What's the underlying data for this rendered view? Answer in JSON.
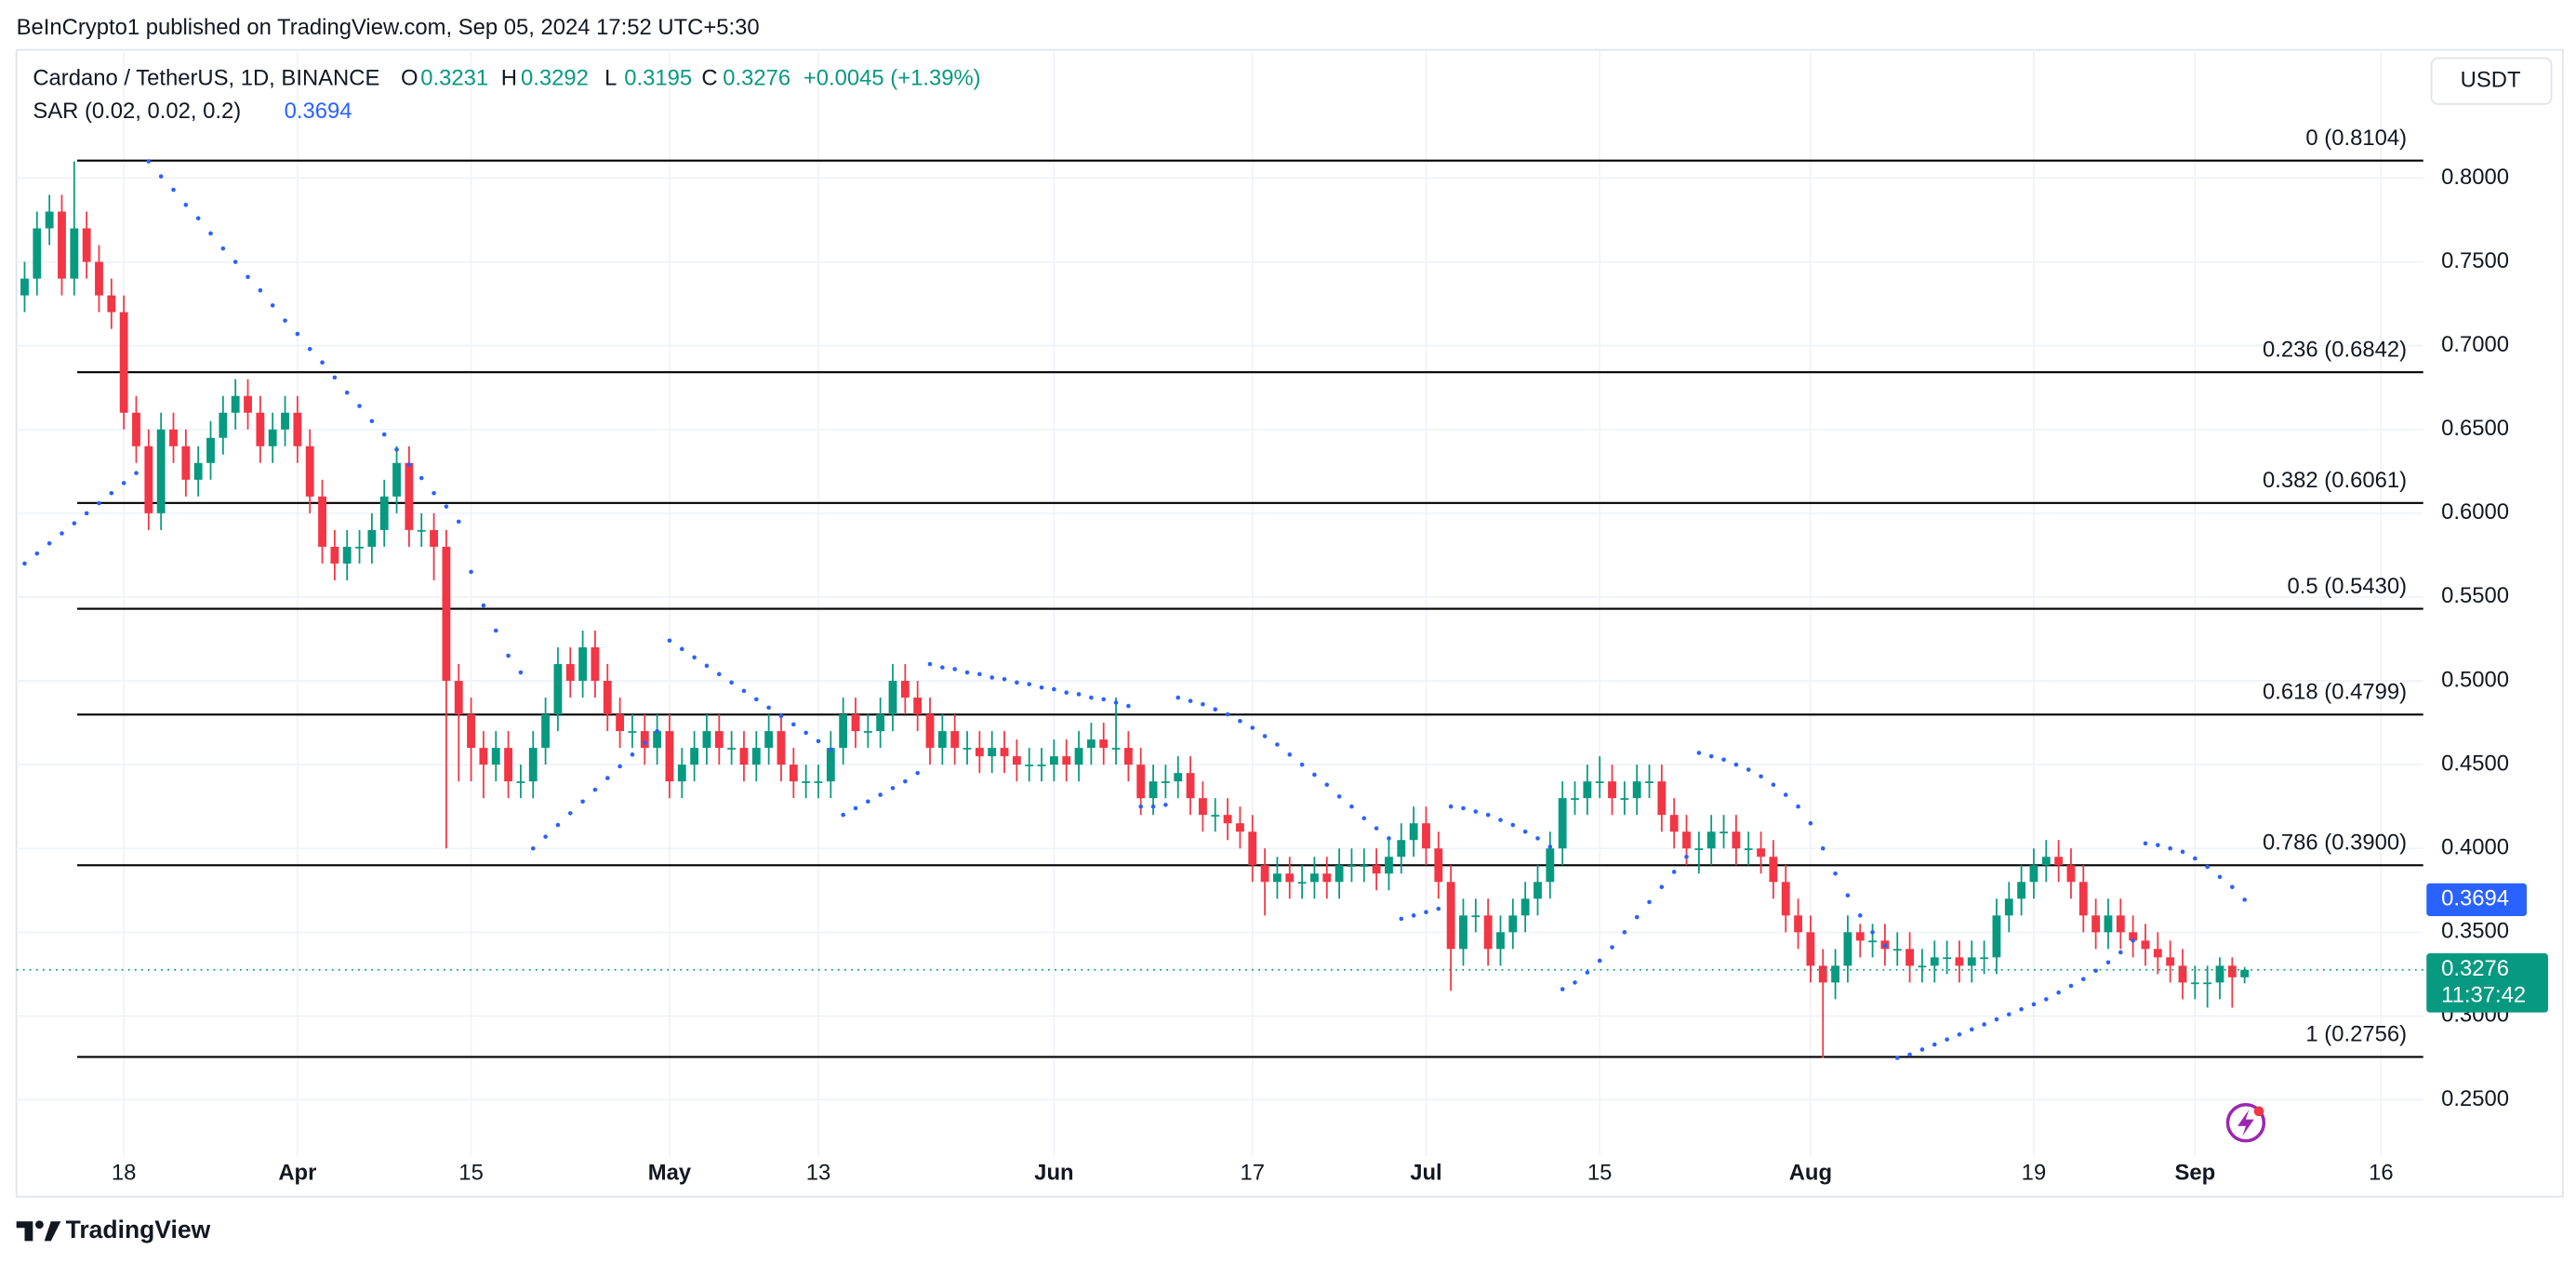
{
  "header": {
    "published": "BeInCrypto1 published on TradingView.com, Sep 05, 2024 17:52 UTC+5:30"
  },
  "footer": {
    "brand": "TradingView"
  },
  "chart_data": {
    "type": "candlestick",
    "symbol": "Cardano / TetherUS, 1D, BINANCE",
    "ohlc_labels": [
      "O",
      "H",
      "L",
      "C"
    ],
    "change": "+0.0045 (+1.39%)",
    "up_color": "#089981",
    "down_color": "#f23645",
    "currency": "USDT",
    "countdown": "11:37:42",
    "grid": true,
    "ohlc": [
      [
        0.73,
        0.75,
        0.72,
        0.74
      ],
      [
        0.74,
        0.78,
        0.73,
        0.77
      ],
      [
        0.77,
        0.79,
        0.76,
        0.78
      ],
      [
        0.78,
        0.79,
        0.73,
        0.74
      ],
      [
        0.74,
        0.81,
        0.73,
        0.77
      ],
      [
        0.77,
        0.78,
        0.74,
        0.75
      ],
      [
        0.75,
        0.76,
        0.72,
        0.73
      ],
      [
        0.73,
        0.74,
        0.71,
        0.72
      ],
      [
        0.72,
        0.73,
        0.65,
        0.66
      ],
      [
        0.66,
        0.67,
        0.63,
        0.64
      ],
      [
        0.64,
        0.65,
        0.59,
        0.6
      ],
      [
        0.6,
        0.66,
        0.59,
        0.65
      ],
      [
        0.65,
        0.66,
        0.63,
        0.64
      ],
      [
        0.64,
        0.65,
        0.61,
        0.62
      ],
      [
        0.62,
        0.64,
        0.61,
        0.63
      ],
      [
        0.63,
        0.655,
        0.62,
        0.645
      ],
      [
        0.645,
        0.67,
        0.635,
        0.66
      ],
      [
        0.66,
        0.68,
        0.65,
        0.67
      ],
      [
        0.67,
        0.68,
        0.65,
        0.66
      ],
      [
        0.66,
        0.67,
        0.63,
        0.64
      ],
      [
        0.64,
        0.66,
        0.63,
        0.65
      ],
      [
        0.65,
        0.67,
        0.64,
        0.66
      ],
      [
        0.66,
        0.67,
        0.63,
        0.64
      ],
      [
        0.64,
        0.65,
        0.6,
        0.61
      ],
      [
        0.61,
        0.62,
        0.57,
        0.58
      ],
      [
        0.58,
        0.59,
        0.56,
        0.57
      ],
      [
        0.57,
        0.59,
        0.56,
        0.58
      ],
      [
        0.58,
        0.59,
        0.57,
        0.58
      ],
      [
        0.58,
        0.6,
        0.57,
        0.59
      ],
      [
        0.59,
        0.62,
        0.58,
        0.61
      ],
      [
        0.61,
        0.64,
        0.6,
        0.63
      ],
      [
        0.63,
        0.64,
        0.58,
        0.59
      ],
      [
        0.59,
        0.6,
        0.58,
        0.59
      ],
      [
        0.59,
        0.6,
        0.56,
        0.58
      ],
      [
        0.58,
        0.59,
        0.4,
        0.5
      ],
      [
        0.5,
        0.51,
        0.44,
        0.48
      ],
      [
        0.48,
        0.49,
        0.44,
        0.46
      ],
      [
        0.46,
        0.47,
        0.43,
        0.45
      ],
      [
        0.45,
        0.47,
        0.44,
        0.46
      ],
      [
        0.46,
        0.47,
        0.43,
        0.44
      ],
      [
        0.44,
        0.45,
        0.43,
        0.44
      ],
      [
        0.44,
        0.47,
        0.43,
        0.46
      ],
      [
        0.46,
        0.49,
        0.45,
        0.48
      ],
      [
        0.48,
        0.52,
        0.47,
        0.51
      ],
      [
        0.51,
        0.52,
        0.49,
        0.5
      ],
      [
        0.5,
        0.53,
        0.49,
        0.52
      ],
      [
        0.52,
        0.53,
        0.49,
        0.5
      ],
      [
        0.5,
        0.51,
        0.47,
        0.48
      ],
      [
        0.48,
        0.49,
        0.46,
        0.47
      ],
      [
        0.47,
        0.48,
        0.46,
        0.47
      ],
      [
        0.47,
        0.48,
        0.45,
        0.46
      ],
      [
        0.46,
        0.48,
        0.45,
        0.47
      ],
      [
        0.47,
        0.48,
        0.43,
        0.44
      ],
      [
        0.44,
        0.46,
        0.43,
        0.45
      ],
      [
        0.45,
        0.47,
        0.44,
        0.46
      ],
      [
        0.46,
        0.48,
        0.45,
        0.47
      ],
      [
        0.47,
        0.48,
        0.45,
        0.46
      ],
      [
        0.46,
        0.47,
        0.45,
        0.46
      ],
      [
        0.46,
        0.47,
        0.44,
        0.45
      ],
      [
        0.45,
        0.47,
        0.44,
        0.46
      ],
      [
        0.46,
        0.48,
        0.45,
        0.47
      ],
      [
        0.47,
        0.48,
        0.44,
        0.45
      ],
      [
        0.45,
        0.46,
        0.43,
        0.44
      ],
      [
        0.44,
        0.45,
        0.43,
        0.44
      ],
      [
        0.44,
        0.45,
        0.43,
        0.44
      ],
      [
        0.44,
        0.47,
        0.43,
        0.46
      ],
      [
        0.46,
        0.49,
        0.45,
        0.48
      ],
      [
        0.48,
        0.49,
        0.46,
        0.47
      ],
      [
        0.47,
        0.48,
        0.46,
        0.47
      ],
      [
        0.47,
        0.49,
        0.46,
        0.48
      ],
      [
        0.48,
        0.51,
        0.47,
        0.5
      ],
      [
        0.5,
        0.51,
        0.48,
        0.49
      ],
      [
        0.49,
        0.5,
        0.47,
        0.48
      ],
      [
        0.48,
        0.49,
        0.45,
        0.46
      ],
      [
        0.46,
        0.48,
        0.45,
        0.47
      ],
      [
        0.47,
        0.48,
        0.45,
        0.46
      ],
      [
        0.46,
        0.47,
        0.45,
        0.46
      ],
      [
        0.46,
        0.47,
        0.445,
        0.455
      ],
      [
        0.455,
        0.47,
        0.445,
        0.46
      ],
      [
        0.46,
        0.47,
        0.445,
        0.455
      ],
      [
        0.455,
        0.465,
        0.44,
        0.45
      ],
      [
        0.45,
        0.46,
        0.44,
        0.45
      ],
      [
        0.45,
        0.46,
        0.44,
        0.45
      ],
      [
        0.45,
        0.465,
        0.44,
        0.455
      ],
      [
        0.455,
        0.465,
        0.44,
        0.45
      ],
      [
        0.45,
        0.47,
        0.44,
        0.46
      ],
      [
        0.46,
        0.475,
        0.45,
        0.465
      ],
      [
        0.465,
        0.475,
        0.45,
        0.46
      ],
      [
        0.46,
        0.49,
        0.45,
        0.46
      ],
      [
        0.46,
        0.47,
        0.44,
        0.45
      ],
      [
        0.45,
        0.46,
        0.42,
        0.43
      ],
      [
        0.43,
        0.45,
        0.42,
        0.44
      ],
      [
        0.44,
        0.45,
        0.43,
        0.44
      ],
      [
        0.44,
        0.455,
        0.43,
        0.445
      ],
      [
        0.445,
        0.455,
        0.42,
        0.43
      ],
      [
        0.43,
        0.44,
        0.41,
        0.42
      ],
      [
        0.42,
        0.43,
        0.41,
        0.42
      ],
      [
        0.42,
        0.43,
        0.405,
        0.415
      ],
      [
        0.415,
        0.425,
        0.4,
        0.41
      ],
      [
        0.41,
        0.42,
        0.38,
        0.39
      ],
      [
        0.39,
        0.4,
        0.36,
        0.38
      ],
      [
        0.38,
        0.395,
        0.37,
        0.385
      ],
      [
        0.385,
        0.395,
        0.37,
        0.38
      ],
      [
        0.38,
        0.39,
        0.37,
        0.38
      ],
      [
        0.38,
        0.395,
        0.37,
        0.385
      ],
      [
        0.385,
        0.395,
        0.37,
        0.38
      ],
      [
        0.38,
        0.4,
        0.37,
        0.39
      ],
      [
        0.39,
        0.4,
        0.38,
        0.39
      ],
      [
        0.39,
        0.4,
        0.38,
        0.39
      ],
      [
        0.39,
        0.4,
        0.375,
        0.385
      ],
      [
        0.385,
        0.405,
        0.375,
        0.395
      ],
      [
        0.395,
        0.415,
        0.385,
        0.405
      ],
      [
        0.405,
        0.425,
        0.395,
        0.415
      ],
      [
        0.415,
        0.425,
        0.39,
        0.4
      ],
      [
        0.4,
        0.41,
        0.37,
        0.38
      ],
      [
        0.38,
        0.39,
        0.315,
        0.34
      ],
      [
        0.34,
        0.37,
        0.33,
        0.36
      ],
      [
        0.36,
        0.37,
        0.35,
        0.36
      ],
      [
        0.36,
        0.37,
        0.33,
        0.34
      ],
      [
        0.34,
        0.36,
        0.33,
        0.35
      ],
      [
        0.35,
        0.37,
        0.34,
        0.36
      ],
      [
        0.36,
        0.38,
        0.35,
        0.37
      ],
      [
        0.37,
        0.39,
        0.36,
        0.38
      ],
      [
        0.38,
        0.41,
        0.37,
        0.4
      ],
      [
        0.4,
        0.44,
        0.39,
        0.43
      ],
      [
        0.43,
        0.44,
        0.42,
        0.43
      ],
      [
        0.43,
        0.45,
        0.42,
        0.44
      ],
      [
        0.44,
        0.455,
        0.43,
        0.44
      ],
      [
        0.44,
        0.45,
        0.42,
        0.43
      ],
      [
        0.43,
        0.44,
        0.42,
        0.43
      ],
      [
        0.43,
        0.45,
        0.42,
        0.44
      ],
      [
        0.44,
        0.45,
        0.43,
        0.44
      ],
      [
        0.44,
        0.45,
        0.41,
        0.42
      ],
      [
        0.42,
        0.43,
        0.4,
        0.41
      ],
      [
        0.41,
        0.42,
        0.39,
        0.4
      ],
      [
        0.4,
        0.41,
        0.385,
        0.4
      ],
      [
        0.4,
        0.42,
        0.39,
        0.41
      ],
      [
        0.41,
        0.42,
        0.4,
        0.41
      ],
      [
        0.41,
        0.42,
        0.39,
        0.4
      ],
      [
        0.4,
        0.41,
        0.39,
        0.4
      ],
      [
        0.4,
        0.41,
        0.385,
        0.395
      ],
      [
        0.395,
        0.405,
        0.37,
        0.38
      ],
      [
        0.38,
        0.39,
        0.35,
        0.36
      ],
      [
        0.36,
        0.37,
        0.34,
        0.35
      ],
      [
        0.35,
        0.36,
        0.32,
        0.33
      ],
      [
        0.33,
        0.34,
        0.275,
        0.32
      ],
      [
        0.32,
        0.34,
        0.31,
        0.33
      ],
      [
        0.33,
        0.36,
        0.32,
        0.35
      ],
      [
        0.35,
        0.355,
        0.335,
        0.345
      ],
      [
        0.345,
        0.355,
        0.335,
        0.345
      ],
      [
        0.345,
        0.355,
        0.33,
        0.34
      ],
      [
        0.34,
        0.35,
        0.33,
        0.34
      ],
      [
        0.34,
        0.35,
        0.32,
        0.33
      ],
      [
        0.33,
        0.34,
        0.32,
        0.33
      ],
      [
        0.33,
        0.345,
        0.32,
        0.335
      ],
      [
        0.335,
        0.345,
        0.325,
        0.335
      ],
      [
        0.335,
        0.345,
        0.32,
        0.33
      ],
      [
        0.33,
        0.345,
        0.32,
        0.335
      ],
      [
        0.335,
        0.345,
        0.325,
        0.335
      ],
      [
        0.335,
        0.37,
        0.325,
        0.36
      ],
      [
        0.36,
        0.38,
        0.35,
        0.37
      ],
      [
        0.37,
        0.39,
        0.36,
        0.38
      ],
      [
        0.38,
        0.4,
        0.37,
        0.39
      ],
      [
        0.39,
        0.405,
        0.38,
        0.395
      ],
      [
        0.395,
        0.405,
        0.38,
        0.39
      ],
      [
        0.39,
        0.4,
        0.37,
        0.38
      ],
      [
        0.38,
        0.39,
        0.35,
        0.36
      ],
      [
        0.36,
        0.37,
        0.34,
        0.35
      ],
      [
        0.35,
        0.37,
        0.34,
        0.36
      ],
      [
        0.36,
        0.37,
        0.34,
        0.35
      ],
      [
        0.35,
        0.36,
        0.335,
        0.345
      ],
      [
        0.345,
        0.355,
        0.33,
        0.34
      ],
      [
        0.34,
        0.35,
        0.325,
        0.335
      ],
      [
        0.335,
        0.345,
        0.32,
        0.33
      ],
      [
        0.33,
        0.34,
        0.31,
        0.32
      ],
      [
        0.32,
        0.33,
        0.31,
        0.32
      ],
      [
        0.32,
        0.33,
        0.305,
        0.32
      ],
      [
        0.32,
        0.335,
        0.31,
        0.33
      ],
      [
        0.33,
        0.335,
        0.305,
        0.3231
      ],
      [
        0.3231,
        0.3292,
        0.3195,
        0.3276
      ]
    ],
    "overlays": [
      {
        "name": "SAR (0.02, 0.02, 0.2)",
        "type": "scatter",
        "color": "#2962ff",
        "values": [
          0.57,
          0.576,
          0.582,
          0.588,
          0.594,
          0.6,
          0.606,
          0.612,
          0.618,
          0.624,
          0.81,
          0.801,
          0.793,
          0.784,
          0.776,
          0.767,
          0.758,
          0.75,
          0.741,
          0.733,
          0.724,
          0.715,
          0.707,
          0.698,
          0.69,
          0.681,
          0.672,
          0.664,
          0.655,
          0.647,
          0.638,
          0.629,
          0.621,
          0.612,
          0.604,
          0.595,
          0.565,
          0.545,
          0.53,
          0.515,
          0.505,
          0.4,
          0.407,
          0.414,
          0.421,
          0.428,
          0.435,
          0.442,
          0.449,
          0.456,
          0.463,
          0.47,
          0.524,
          0.519,
          0.514,
          0.509,
          0.504,
          0.499,
          0.494,
          0.489,
          0.484,
          0.479,
          0.474,
          0.469,
          0.464,
          0.459,
          0.42,
          0.424,
          0.428,
          0.432,
          0.436,
          0.44,
          0.445,
          0.51,
          0.508,
          0.507,
          0.505,
          0.504,
          0.502,
          0.501,
          0.499,
          0.498,
          0.496,
          0.495,
          0.493,
          0.492,
          0.49,
          0.489,
          0.487,
          0.485,
          0.425,
          0.425,
          0.426,
          0.49,
          0.488,
          0.486,
          0.483,
          0.48,
          0.476,
          0.472,
          0.467,
          0.462,
          0.456,
          0.45,
          0.444,
          0.438,
          0.431,
          0.425,
          0.418,
          0.412,
          0.406,
          0.358,
          0.36,
          0.362,
          0.364,
          0.425,
          0.424,
          0.422,
          0.42,
          0.417,
          0.414,
          0.41,
          0.406,
          0.401,
          0.316,
          0.32,
          0.326,
          0.333,
          0.341,
          0.35,
          0.359,
          0.368,
          0.377,
          0.386,
          0.395,
          0.457,
          0.455,
          0.453,
          0.45,
          0.447,
          0.443,
          0.438,
          0.432,
          0.425,
          0.415,
          0.4,
          0.385,
          0.372,
          0.36,
          0.35,
          0.342,
          0.275,
          0.277,
          0.28,
          0.283,
          0.286,
          0.289,
          0.292,
          0.295,
          0.298,
          0.301,
          0.304,
          0.307,
          0.31,
          0.314,
          0.318,
          0.322,
          0.327,
          0.332,
          0.338,
          0.345,
          0.403,
          0.402,
          0.4,
          0.398,
          0.394,
          0.389,
          0.383,
          0.377,
          0.3694
        ]
      }
    ],
    "fib_levels": [
      {
        "value": 0.8104,
        "label": "0 (0.8104)"
      },
      {
        "value": 0.6842,
        "label": "0.236 (0.6842)"
      },
      {
        "value": 0.6061,
        "label": "0.382 (0.6061)"
      },
      {
        "value": 0.543,
        "label": "0.5 (0.5430)"
      },
      {
        "value": 0.4799,
        "label": "0.618 (0.4799)"
      },
      {
        "value": 0.39,
        "label": "0.786 (0.3900)"
      },
      {
        "value": 0.2756,
        "label": "1 (0.2756)"
      }
    ],
    "ylim": [
      0.2167,
      0.8716
    ],
    "yticks": [
      {
        "value": 0.25,
        "label": "0.2500"
      },
      {
        "value": 0.3,
        "label": "0.3000"
      },
      {
        "value": 0.35,
        "label": "0.3500"
      },
      {
        "value": 0.4,
        "label": "0.4000"
      },
      {
        "value": 0.45,
        "label": "0.4500"
      },
      {
        "value": 0.5,
        "label": "0.5000"
      },
      {
        "value": 0.55,
        "label": "0.5500"
      },
      {
        "value": 0.6,
        "label": "0.6000"
      },
      {
        "value": 0.65,
        "label": "0.6500"
      },
      {
        "value": 0.7,
        "label": "0.7000"
      },
      {
        "value": 0.75,
        "label": "0.7500"
      },
      {
        "value": 0.8,
        "label": "0.8000"
      }
    ],
    "xlim": [
      -0.66,
      193.4
    ],
    "xticks": [
      {
        "value": 8,
        "label": "18"
      },
      {
        "value": 22,
        "label": "Apr"
      },
      {
        "value": 36,
        "label": "15"
      },
      {
        "value": 52,
        "label": "May"
      },
      {
        "value": 64,
        "label": "13"
      },
      {
        "value": 83,
        "label": "Jun"
      },
      {
        "value": 99,
        "label": "17"
      },
      {
        "value": 113,
        "label": "Jul"
      },
      {
        "value": 127,
        "label": "15"
      },
      {
        "value": 144,
        "label": "Aug"
      },
      {
        "value": 162,
        "label": "19"
      },
      {
        "value": 175,
        "label": "Sep"
      },
      {
        "value": 190,
        "label": "16"
      }
    ]
  }
}
